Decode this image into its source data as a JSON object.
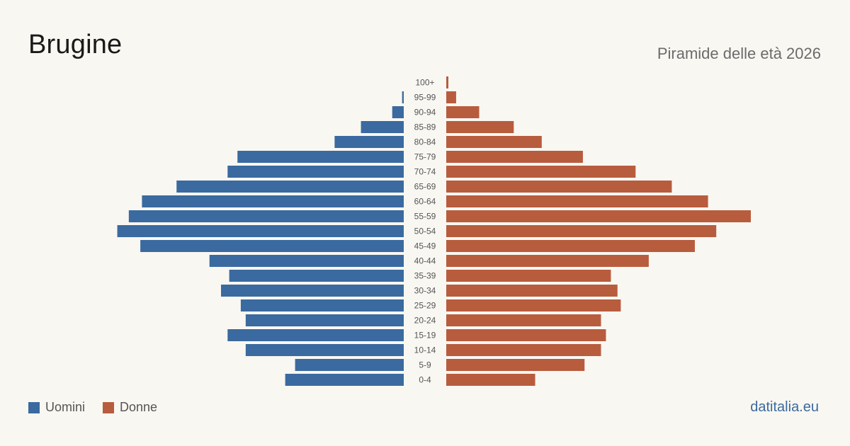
{
  "header": {
    "title": "Brugine",
    "subtitle": "Piramide delle età 2026"
  },
  "legend": {
    "men_label": "Uomini",
    "women_label": "Donne",
    "men_color": "#3a6a9f",
    "women_color": "#b85c3e"
  },
  "footer": {
    "source": "datitalia.eu"
  },
  "chart_data": {
    "type": "bar",
    "orientation": "horizontal-population-pyramid",
    "categories": [
      "100+",
      "95-99",
      "90-94",
      "85-89",
      "80-84",
      "75-79",
      "70-74",
      "65-69",
      "60-64",
      "55-59",
      "50-54",
      "45-49",
      "40-44",
      "35-39",
      "30-34",
      "25-29",
      "20-24",
      "15-19",
      "10-14",
      "5-9",
      "0-4"
    ],
    "series": [
      {
        "name": "Uomini",
        "color": "#3a6a9f",
        "values": [
          0,
          1,
          7,
          26,
          42,
          101,
          107,
          138,
          159,
          167,
          174,
          160,
          118,
          106,
          111,
          99,
          96,
          107,
          96,
          66,
          72
        ]
      },
      {
        "name": "Donne",
        "color": "#b85c3e",
        "values": [
          1,
          6,
          20,
          41,
          58,
          83,
          115,
          137,
          159,
          185,
          164,
          151,
          123,
          100,
          104,
          106,
          94,
          97,
          94,
          84,
          54
        ]
      }
    ],
    "grid": false,
    "legend_position": "bottom-left"
  }
}
